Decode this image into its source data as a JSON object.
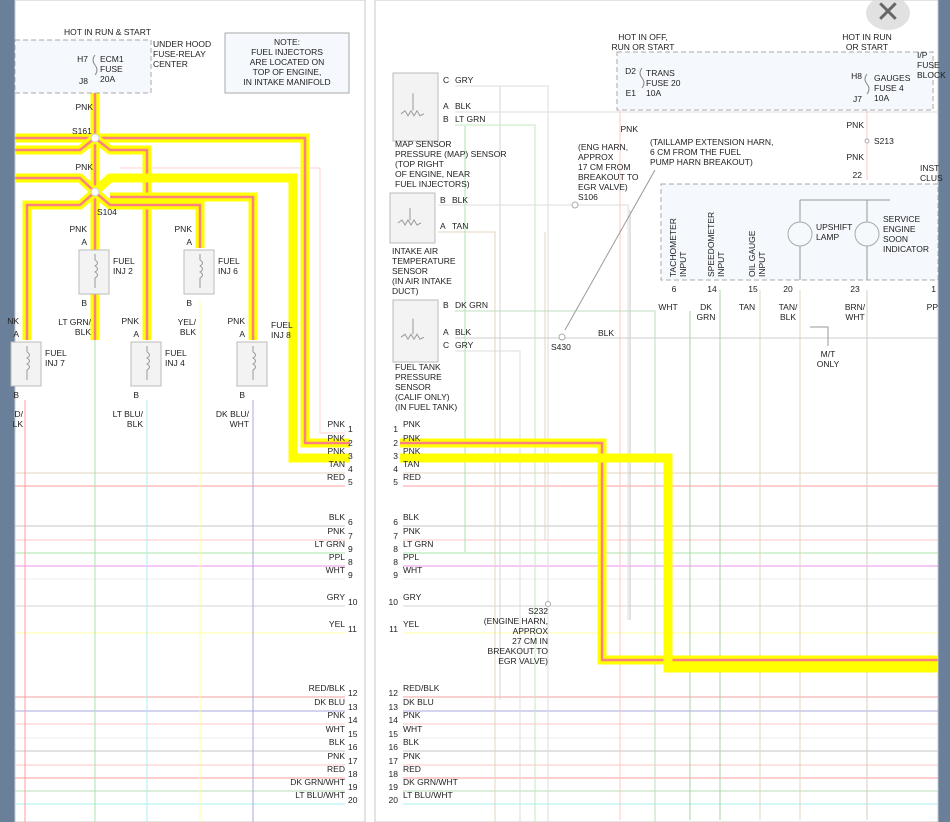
{
  "viewer": {
    "close_icon": "close-icon"
  },
  "colors": {
    "highlight": "#ffff00",
    "highlight_core": "#ff8080",
    "panel_border": "#c8c8c8",
    "frame": "#6a7f9a"
  },
  "left": {
    "hot_label": "HOT IN RUN & START",
    "fuse_center": [
      "UNDER HOOD",
      "FUSE-RELAY",
      "CENTER"
    ],
    "fuse": {
      "top_pin": "H7",
      "bottom_pin": "J8",
      "lines": [
        "ECM1",
        "FUSE",
        "20A"
      ]
    },
    "note": [
      "NOTE:",
      "FUEL INJECTORS",
      "ARE LOCATED ON",
      "TOP OF ENGINE,",
      "IN INTAKE MANIFOLD"
    ],
    "splices": [
      "S161",
      "S104"
    ],
    "wire_labels": [
      "PNK",
      "PNK"
    ],
    "injectors": [
      {
        "name": [
          "FUEL",
          "INJ 2"
        ],
        "a": "A",
        "b": "B",
        "in": "PNK",
        "out": [
          "LT GRN/",
          "BLK"
        ]
      },
      {
        "name": [
          "FUEL",
          "INJ 6"
        ],
        "a": "A",
        "b": "B",
        "in": "PNK",
        "out": [
          "YEL/",
          "BLK"
        ]
      },
      {
        "name": [
          "FUEL",
          "INJ 7"
        ],
        "a": "A",
        "b": "B",
        "in": "NK",
        "out": [
          "D/",
          "LK"
        ]
      },
      {
        "name": [
          "FUEL",
          "INJ 4"
        ],
        "a": "A",
        "b": "B",
        "in": "PNK",
        "out": [
          "LT BLU/",
          "BLK"
        ]
      },
      {
        "name": [
          "FUEL",
          "INJ 8"
        ],
        "a": "A",
        "b": "B",
        "in": "PNK",
        "out": [
          "DK BLU/",
          "WHT"
        ]
      }
    ],
    "pins": [
      {
        "num": "1",
        "color": "PNK"
      },
      {
        "num": "2",
        "color": "PNK"
      },
      {
        "num": "3",
        "color": "PNK"
      },
      {
        "num": "4",
        "color": "TAN"
      },
      {
        "num": "5",
        "color": "RED"
      },
      {
        "num": "6",
        "color": "BLK"
      },
      {
        "num": "7",
        "color": "PNK"
      },
      {
        "num": "9",
        "color": "LT GRN"
      },
      {
        "num": "8",
        "color": "PPL"
      },
      {
        "num": "9",
        "color": "WHT"
      },
      {
        "num": "10",
        "color": "GRY"
      },
      {
        "num": "11",
        "color": "YEL"
      },
      {
        "num": "12",
        "color": "RED/BLK"
      },
      {
        "num": "13",
        "color": "DK BLU"
      },
      {
        "num": "14",
        "color": "PNK"
      },
      {
        "num": "15",
        "color": "WHT"
      },
      {
        "num": "16",
        "color": "BLK"
      },
      {
        "num": "17",
        "color": "PNK"
      },
      {
        "num": "18",
        "color": "RED"
      },
      {
        "num": "19",
        "color": "DK GRN/WHT"
      },
      {
        "num": "20",
        "color": "LT BLU/WHT"
      }
    ]
  },
  "right": {
    "map_sensor": {
      "pins": [
        [
          "C",
          "GRY"
        ],
        [
          "A",
          "BLK"
        ],
        [
          "B",
          "LT GRN"
        ]
      ],
      "label": [
        "MAP SENSOR",
        "PRESSURE (MAP) SENSOR",
        "(TOP RIGHT",
        "OF ENGINE, NEAR",
        "FUEL INJECTORS)"
      ]
    },
    "iat_sensor": {
      "pins": [
        [
          "B",
          "BLK"
        ],
        [
          "A",
          "TAN"
        ]
      ],
      "label": [
        "INTAKE AIR",
        "TEMPERATURE",
        "SENSOR",
        "(IN AIR INTAKE",
        "DUCT)"
      ]
    },
    "ftp_sensor": {
      "pins": [
        [
          "B",
          "DK GRN"
        ],
        [
          "A",
          "BLK"
        ],
        [
          "C",
          "GRY"
        ]
      ],
      "label": [
        "FUEL TANK",
        "PRESSURE",
        "SENSOR",
        "(CALIF ONLY)",
        "(IN FUEL TANK)"
      ]
    },
    "s106": {
      "label": [
        "(ENG HARN,",
        "APPROX",
        "17 CM FROM",
        "BREAKOUT TO",
        "EGR VALVE)",
        "S106"
      ]
    },
    "s430": {
      "label": "S430",
      "wire": "BLK"
    },
    "taillamp_note": [
      "(TAILLAMP EXTENSION HARN,",
      "6 CM FROM THE FUEL",
      "PUMP HARN BREAKOUT)"
    ],
    "trans_fuse": {
      "hot": [
        "HOT IN OFF,",
        "RUN OR START"
      ],
      "top_pin": "D2",
      "bottom_pin": "E1",
      "lines": [
        "TRANS",
        "FUSE 20",
        "10A"
      ],
      "wire": "PNK"
    },
    "gauges_fuse": {
      "hot": [
        "HOT IN RUN",
        "OR START"
      ],
      "top_pin": "H8",
      "bottom_pin": "J7",
      "lines": [
        "GAUGES",
        "FUSE 4",
        "10A"
      ],
      "block": [
        "I/P",
        "FUSE",
        "BLOCK"
      ]
    },
    "s213": {
      "label": "S213",
      "wire_top": "PNK",
      "wire_bottom": "PNK",
      "pin": "22"
    },
    "cluster": {
      "label": [
        "INST",
        "CLUS"
      ],
      "inputs": [
        {
          "label": [
            "TACHOMETER",
            "INPUT"
          ],
          "pin": "6",
          "wire": [
            "WHT"
          ]
        },
        {
          "label": [
            "SPEEDOMETER",
            "INPUT"
          ],
          "pin": "14",
          "wire": [
            "DK",
            "GRN"
          ]
        },
        {
          "label": [
            "OIL GAUGE",
            "INPUT"
          ],
          "pin": "15",
          "wire": [
            "TAN"
          ]
        }
      ],
      "lamps": [
        {
          "label": [
            "UPSHIFT",
            "LAMP"
          ],
          "pin": "20",
          "wire": [
            "TAN/",
            "BLK"
          ]
        },
        {
          "label": [
            "SERVICE",
            "ENGINE",
            "SOON",
            "INDICATOR"
          ],
          "pin": "23",
          "wire": [
            "BRN/",
            "WHT"
          ]
        }
      ],
      "extra_pin": "1",
      "extra_wire": "PP",
      "mt_only": [
        "M/T",
        "ONLY"
      ]
    },
    "s232": {
      "label": [
        "S232",
        "(ENGINE HARN,",
        "APPROX",
        "27 CM IN",
        "BREAKOUT TO",
        "EGR VALVE)"
      ]
    },
    "pins": [
      {
        "num": "1",
        "color": "PNK"
      },
      {
        "num": "2",
        "color": "PNK"
      },
      {
        "num": "3",
        "color": "PNK"
      },
      {
        "num": "4",
        "color": "TAN"
      },
      {
        "num": "5",
        "color": "RED"
      },
      {
        "num": "6",
        "color": "BLK"
      },
      {
        "num": "7",
        "color": "PNK"
      },
      {
        "num": "8",
        "color": "LT GRN"
      },
      {
        "num": "8",
        "color": "PPL"
      },
      {
        "num": "9",
        "color": "WHT"
      },
      {
        "num": "10",
        "color": "GRY"
      },
      {
        "num": "11",
        "color": "YEL"
      },
      {
        "num": "12",
        "color": "RED/BLK"
      },
      {
        "num": "13",
        "color": "DK BLU"
      },
      {
        "num": "14",
        "color": "PNK"
      },
      {
        "num": "15",
        "color": "WHT"
      },
      {
        "num": "16",
        "color": "BLK"
      },
      {
        "num": "17",
        "color": "PNK"
      },
      {
        "num": "18",
        "color": "RED"
      },
      {
        "num": "19",
        "color": "DK GRN/WHT"
      },
      {
        "num": "20",
        "color": "LT BLU/WHT"
      }
    ]
  }
}
